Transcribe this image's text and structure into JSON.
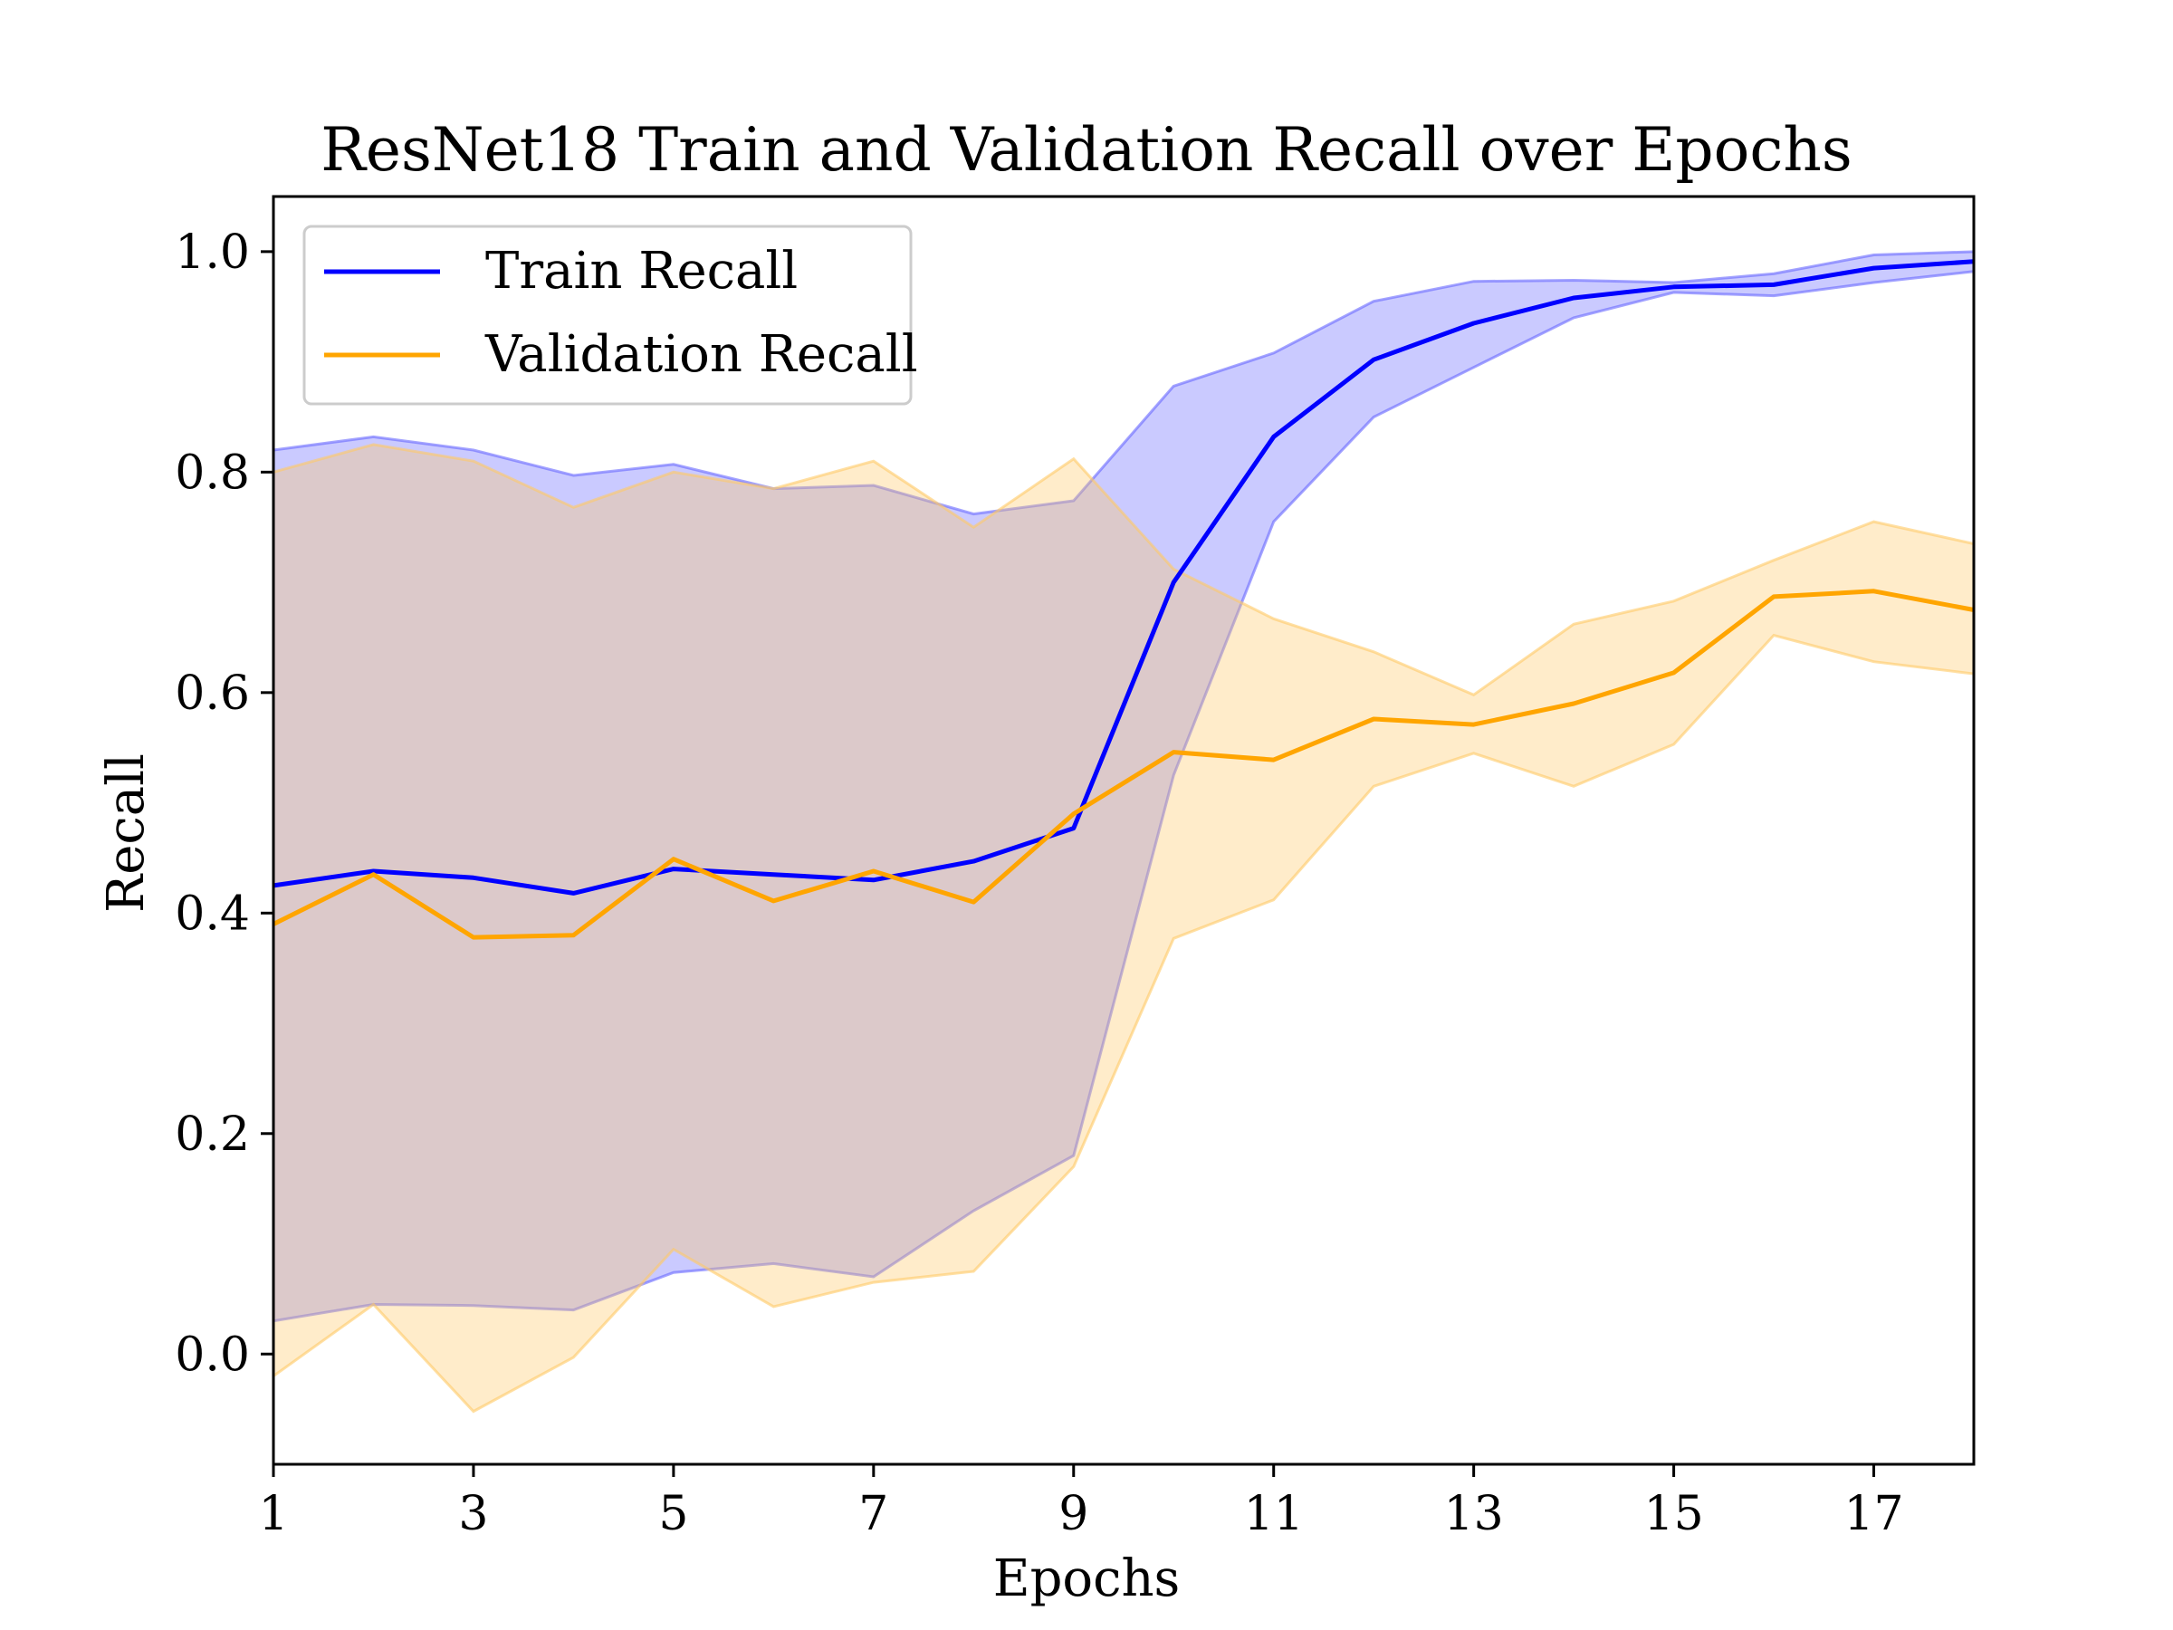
{
  "chart_data": {
    "type": "line",
    "title": "ResNet18 Train and Validation Recall over Epochs",
    "xlabel": "Epochs",
    "ylabel": "Recall",
    "xlim": [
      1,
      18
    ],
    "ylim": [
      -0.1,
      1.05
    ],
    "x_ticks": [
      "1",
      "3",
      "5",
      "7",
      "9",
      "11",
      "13",
      "15",
      "17"
    ],
    "y_ticks": [
      "0.0",
      "0.2",
      "0.4",
      "0.6",
      "0.8",
      "1.0"
    ],
    "grid": false,
    "legend_position": "upper-left",
    "x": [
      1,
      2,
      3,
      4,
      5,
      6,
      7,
      8,
      9,
      10,
      11,
      12,
      13,
      14,
      15,
      16,
      17,
      18
    ],
    "series": [
      {
        "name": "Train Recall",
        "color": "#0000ff",
        "band_color": "#6666ff",
        "values": [
          0.425,
          0.438,
          0.432,
          0.418,
          0.44,
          0.435,
          0.43,
          0.447,
          0.477,
          0.7,
          0.832,
          0.902,
          0.935,
          0.958,
          0.968,
          0.97,
          0.985,
          0.991
        ],
        "upper": [
          0.82,
          0.832,
          0.82,
          0.797,
          0.807,
          0.785,
          0.788,
          0.762,
          0.774,
          0.878,
          0.908,
          0.955,
          0.973,
          0.974,
          0.972,
          0.98,
          0.997,
          1.0
        ],
        "lower": [
          0.03,
          0.045,
          0.044,
          0.04,
          0.074,
          0.082,
          0.07,
          0.13,
          0.18,
          0.525,
          0.755,
          0.85,
          0.895,
          0.94,
          0.963,
          0.96,
          0.972,
          0.982
        ]
      },
      {
        "name": "Validation Recall",
        "color": "#ffa500",
        "band_color": "#ffc966",
        "values": [
          0.39,
          0.435,
          0.378,
          0.38,
          0.449,
          0.411,
          0.438,
          0.41,
          0.49,
          0.546,
          0.539,
          0.576,
          0.571,
          0.59,
          0.618,
          0.687,
          0.692,
          0.675
        ],
        "upper": [
          0.8,
          0.825,
          0.81,
          0.768,
          0.8,
          0.785,
          0.81,
          0.75,
          0.812,
          0.712,
          0.667,
          0.637,
          0.598,
          0.662,
          0.683,
          0.72,
          0.755,
          0.735
        ],
        "lower": [
          -0.02,
          0.045,
          -0.052,
          -0.003,
          0.095,
          0.043,
          0.065,
          0.075,
          0.17,
          0.377,
          0.412,
          0.515,
          0.545,
          0.515,
          0.553,
          0.652,
          0.628,
          0.617
        ]
      }
    ]
  }
}
